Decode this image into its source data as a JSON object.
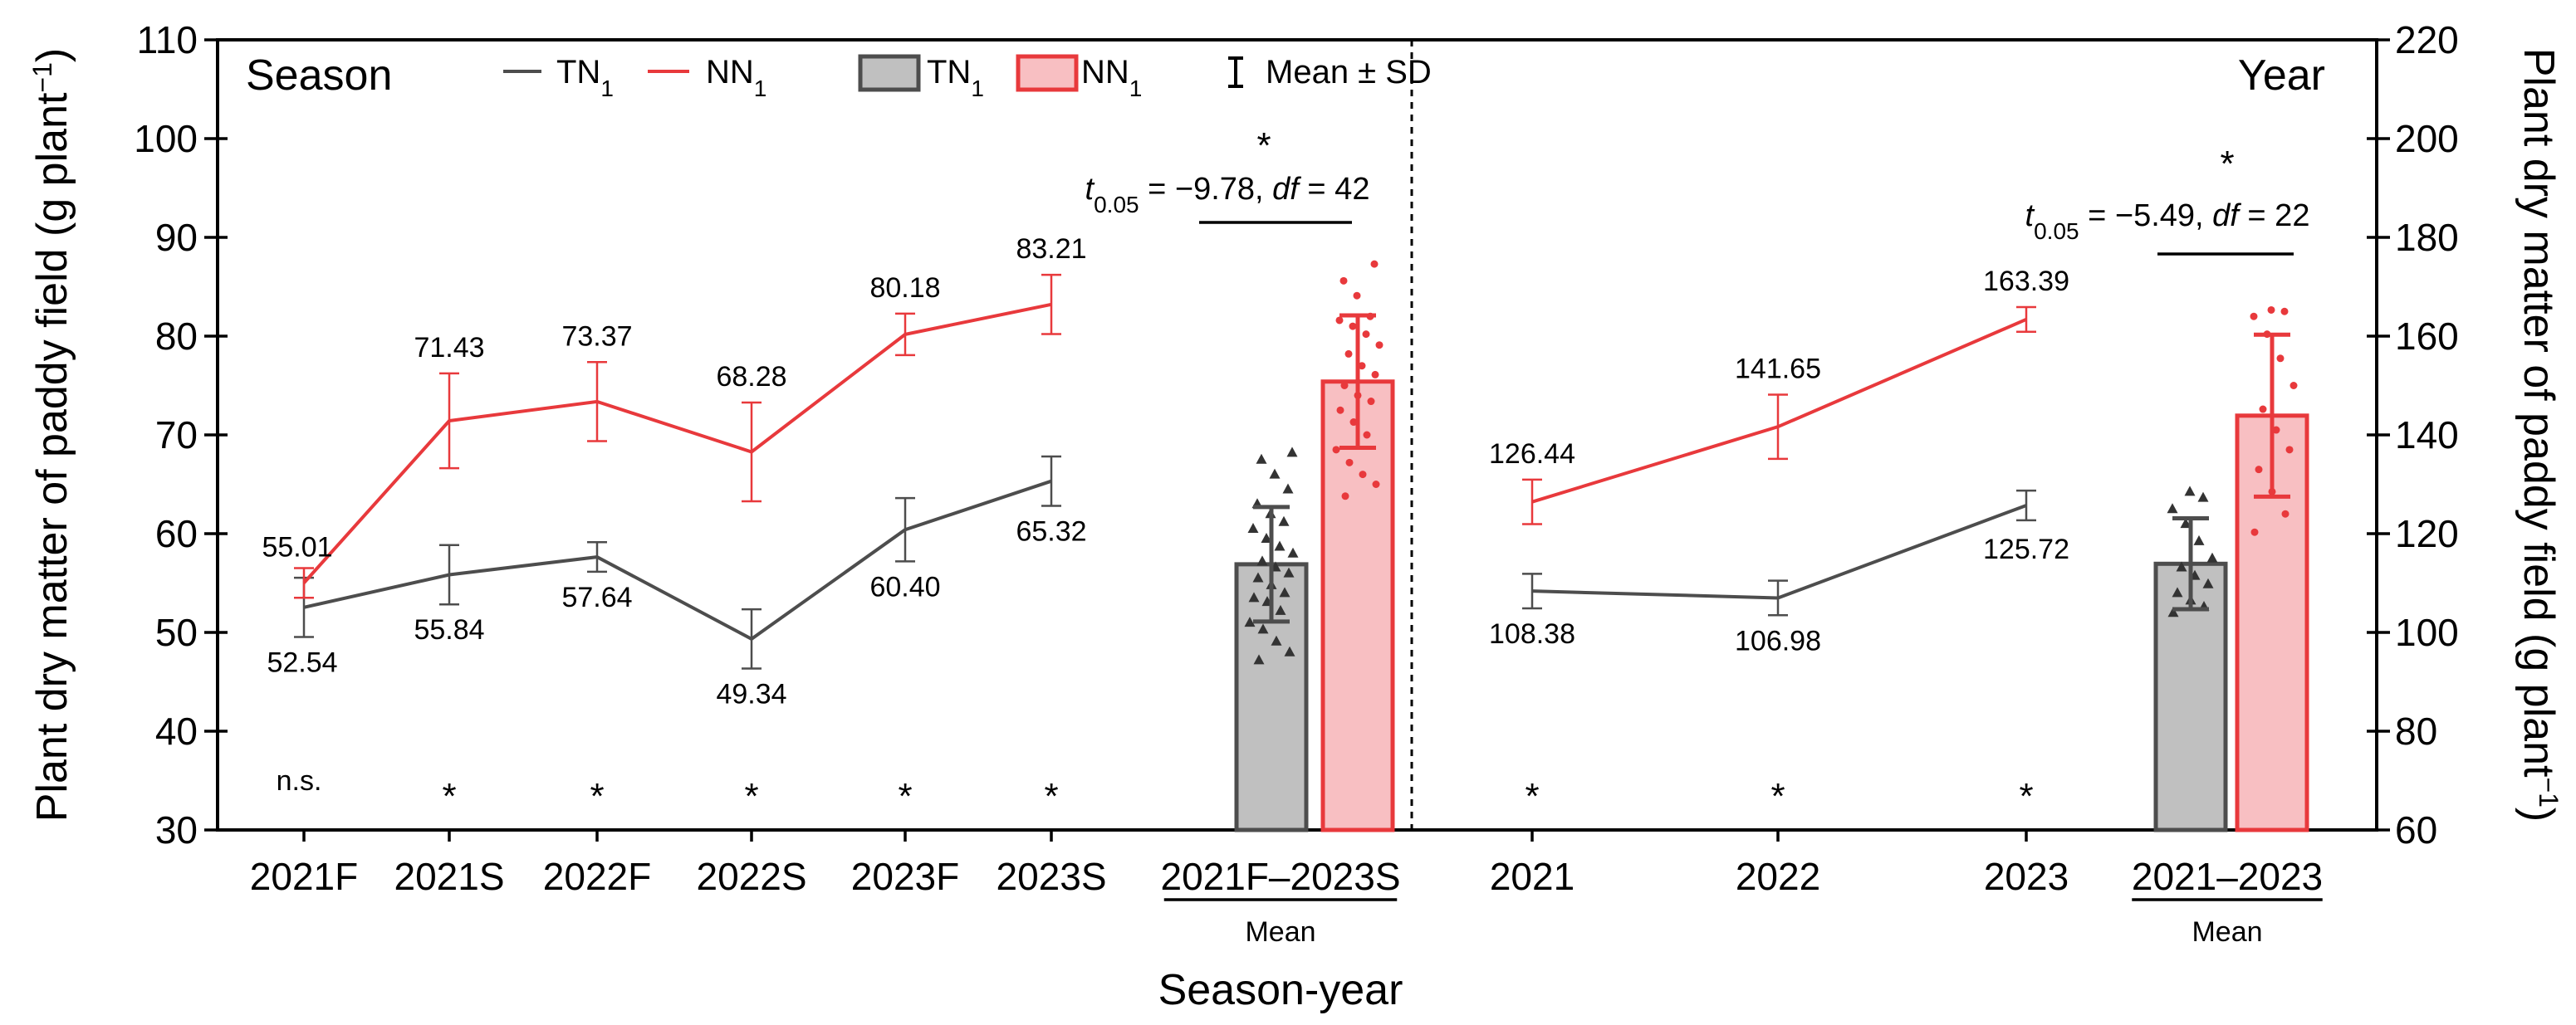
{
  "chart_data": {
    "type": "line",
    "x_title": "Season-year",
    "y_left_title": "Plant dry matter of paddy field (g plant",
    "y_right_title": "Plant dry matter of paddy field (g plant",
    "y_unit_superscript": "−1",
    "y_left": {
      "min": 30,
      "max": 110,
      "ticks": [
        30,
        40,
        50,
        60,
        70,
        80,
        90,
        100,
        110
      ]
    },
    "y_right": {
      "min": 60,
      "max": 220,
      "ticks": [
        60,
        80,
        100,
        120,
        140,
        160,
        180,
        200,
        220
      ]
    },
    "colors": {
      "TN1": "#4d4d4d",
      "NN1": "#e8393c",
      "TN1_fill": "#c0c0c0",
      "NN1_fill": "#f8bfc2"
    },
    "season_panel": {
      "label": "Season",
      "categories": [
        "2021F",
        "2021S",
        "2022F",
        "2022S",
        "2023F",
        "2023S"
      ],
      "series": [
        {
          "name": "TN1",
          "values": [
            52.54,
            55.84,
            57.64,
            49.34,
            60.4,
            65.32
          ],
          "sd": [
            3.0,
            3.0,
            1.5,
            3.0,
            3.2,
            2.5
          ],
          "labels": [
            "52.54",
            "55.84",
            "57.64",
            "49.34",
            "60.40",
            "65.32"
          ]
        },
        {
          "name": "NN1",
          "values": [
            55.01,
            71.43,
            73.37,
            68.28,
            80.18,
            83.21
          ],
          "sd": [
            1.5,
            4.8,
            4.0,
            5.0,
            2.1,
            3.0
          ],
          "labels": [
            "55.01",
            "71.43",
            "73.37",
            "68.28",
            "80.18",
            "83.21"
          ]
        }
      ],
      "significance": [
        "n.s.",
        "*",
        "*",
        "*",
        "*",
        "*"
      ],
      "mean": {
        "label": "2021F–2023S",
        "sublabel": "Mean",
        "TN1": {
          "mean": 56.9,
          "sd": 5.8,
          "points": [
            47.2,
            48.0,
            49.1,
            50.3,
            51.0,
            52.2,
            53.1,
            53.5,
            54.0,
            54.8,
            55.5,
            56.0,
            56.6,
            57.2,
            58.0,
            58.7,
            59.5,
            60.5,
            61.2,
            62.0,
            63.0,
            64.5,
            66.0,
            67.5,
            68.2
          ]
        },
        "NN1": {
          "mean": 75.4,
          "sd": 6.7,
          "points": [
            63.8,
            65.0,
            66.0,
            67.2,
            68.5,
            70.0,
            71.3,
            72.5,
            73.4,
            74.0,
            75.0,
            76.1,
            77.0,
            78.2,
            79.1,
            80.2,
            81.0,
            81.6,
            82.0,
            84.1,
            85.6,
            87.3
          ]
        },
        "star": "*",
        "ttest": {
          "stat": "−9.78",
          "df": "42",
          "t": "t",
          "sub": "0.05",
          "df_label": "df"
        }
      }
    },
    "year_panel": {
      "label": "Year",
      "categories": [
        "2021",
        "2022",
        "2023"
      ],
      "series": [
        {
          "name": "TN1",
          "values": [
            108.38,
            106.98,
            125.72
          ],
          "sd": [
            3.5,
            3.5,
            3.0
          ],
          "labels": [
            "108.38",
            "106.98",
            "125.72"
          ]
        },
        {
          "name": "NN1",
          "values": [
            126.44,
            141.65,
            163.39
          ],
          "sd": [
            4.5,
            6.5,
            2.5
          ],
          "labels": [
            "126.44",
            "141.65",
            "163.39"
          ]
        }
      ],
      "significance": [
        "*",
        "*",
        "*"
      ],
      "mean": {
        "label": "2021–2023",
        "sublabel": "Mean",
        "TN1": {
          "mean": 113.9,
          "sd": 9.2,
          "points": [
            104.0,
            105.2,
            106.5,
            108.0,
            109.8,
            111.5,
            113.2,
            115.0,
            118.5,
            122.0,
            125.0,
            127.3,
            128.5
          ]
        },
        "NN1": {
          "mean": 143.9,
          "sd": 16.4,
          "points": [
            120.3,
            124.0,
            128.5,
            133.0,
            137.0,
            141.0,
            145.2,
            150.0,
            155.5,
            160.4,
            164.0,
            165.0,
            165.3
          ]
        },
        "star": "*",
        "ttest": {
          "stat": "−5.49",
          "df": "22",
          "t": "t",
          "sub": "0.05",
          "df_label": "df"
        }
      }
    },
    "legend": {
      "line_TN1": "TN",
      "line_NN1": "NN",
      "bar_TN1": "TN",
      "bar_NN1": "NN",
      "subscript": "1",
      "errorbar": "Mean ± SD"
    }
  }
}
